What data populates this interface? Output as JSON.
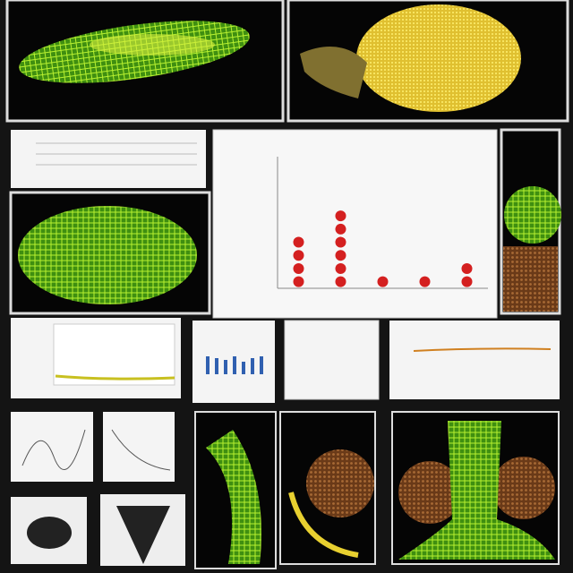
{
  "chart_data": {
    "type": "dot",
    "categories": [
      null,
      null,
      null,
      null,
      null
    ],
    "values": [
      4,
      6,
      1,
      1,
      2
    ],
    "color": "#d42020",
    "ylim": [
      0,
      10
    ]
  }
}
